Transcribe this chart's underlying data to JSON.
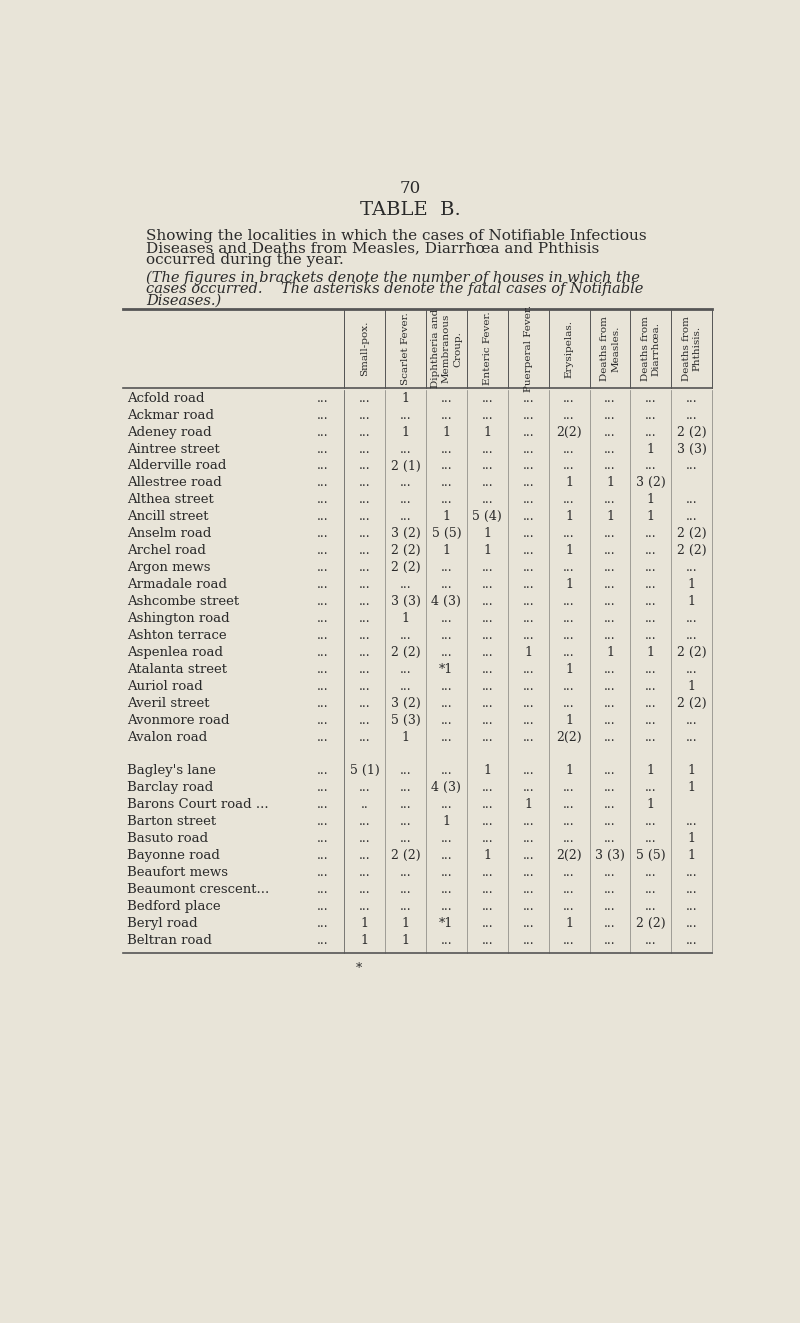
{
  "page_number": "70",
  "title": "TABLE  B.",
  "subtitle_line1": "Showing the localities in which the cases of Notifiable Infectious",
  "subtitle_line2": "Diseases and Deaths from Measles, Diarrħœa and Phthisis",
  "subtitle_line3": "occurred during the year.",
  "note_line1": "(The figures in brackets denote the number of houses in which the",
  "note_line2": "cases occurred.    The asterisks denote the fatal cases of Notifiable",
  "note_line3": "Diseases.)",
  "col_headers": [
    "Small-pox.",
    "Scarlet Fever.",
    "Diphtheria and\nMembranous\nCroup.",
    "Enteric Fever.",
    "Puerperal Fever.",
    "Erysipelas.",
    "Deaths from\nMeasles.",
    "Deaths from\nDiarrhœa.",
    "Deaths from\nPhthisis."
  ],
  "rows": [
    [
      "Acfold road",
      "...",
      "...",
      "1",
      "...",
      "...",
      "...",
      "...",
      "...",
      "...",
      "..."
    ],
    [
      "Ackmar road",
      "...",
      "...",
      "...",
      "...",
      "...",
      "...",
      "...",
      "...",
      "...",
      "..."
    ],
    [
      "Adeney road",
      "...",
      "...",
      "1",
      "1",
      "1",
      "...",
      "2(2)",
      "...",
      "...",
      "2 (2)"
    ],
    [
      "Aintree street",
      "...",
      "...",
      "...",
      "...",
      "...",
      "...",
      "...",
      "...",
      "1",
      "3 (3)"
    ],
    [
      "Alderville road",
      "...",
      "...",
      "2 (1)",
      "...",
      "...",
      "...",
      "...",
      "...",
      "...",
      "..."
    ],
    [
      "Allestree road",
      "...",
      "...",
      "...",
      "...",
      "...",
      "...",
      "1",
      "1",
      "3 (2)",
      ""
    ],
    [
      "Althea street",
      "...",
      "...",
      "...",
      "...",
      "...",
      "...",
      "...",
      "...",
      "1",
      "..."
    ],
    [
      "Ancill street",
      "...",
      "...",
      "...",
      "1",
      "5 (4)",
      "...",
      "1",
      "1",
      "1",
      "..."
    ],
    [
      "Anselm road",
      "...",
      "...",
      "3 (2)",
      "5 (5)",
      "1",
      "...",
      "...",
      "...",
      "...",
      "2 (2)"
    ],
    [
      "Archel road",
      "...",
      "...",
      "2 (2)",
      "1",
      "1",
      "...",
      "1",
      "...",
      "...",
      "2 (2)"
    ],
    [
      "Argon mews",
      "...",
      "...",
      "2 (2)",
      "...",
      "...",
      "...",
      "...",
      "...",
      "...",
      "..."
    ],
    [
      "Armadale road",
      "...",
      "...",
      "...",
      "...",
      "...",
      "...",
      "1",
      "...",
      "...",
      "1"
    ],
    [
      "Ashcombe street",
      "...",
      "...",
      "3 (3)",
      "4 (3)",
      "...",
      "...",
      "...",
      "...",
      "...",
      "1"
    ],
    [
      "Ashington road",
      "...",
      "...",
      "1",
      "...",
      "...",
      "...",
      "...",
      "...",
      "...",
      "..."
    ],
    [
      "Ashton terrace",
      "...",
      "...",
      "...",
      "...",
      "...",
      "...",
      "...",
      "...",
      "...",
      "..."
    ],
    [
      "Aspenlea road",
      "...",
      "...",
      "2 (2)",
      "...",
      "...",
      "1",
      "...",
      "1",
      "1",
      "2 (2)"
    ],
    [
      "Atalanta street",
      "...",
      "...",
      "...",
      "*1",
      "...",
      "...",
      "1",
      "...",
      "...",
      "..."
    ],
    [
      "Auriol road",
      "...",
      "...",
      "...",
      "...",
      "...",
      "...",
      "...",
      "...",
      "...",
      "1"
    ],
    [
      "Averil street",
      "...",
      "...",
      "3 (2)",
      "...",
      "...",
      "...",
      "...",
      "...",
      "...",
      "2 (2)"
    ],
    [
      "Avonmore road",
      "...",
      "...",
      "5 (3)",
      "...",
      "...",
      "...",
      "1",
      "...",
      "...",
      "..."
    ],
    [
      "Avalon road",
      "...",
      "...",
      "1",
      "...",
      "...",
      "...",
      "2(2)",
      "...",
      "...",
      "..."
    ],
    [
      "",
      "",
      "",
      "",
      "",
      "",
      "",
      "",
      "",
      "",
      ""
    ],
    [
      "Bagley's lane",
      "...",
      "5 (1)",
      "...",
      "...",
      "1",
      "...",
      "1",
      "...",
      "1",
      "1"
    ],
    [
      "Barclay road",
      "...",
      "...",
      "...",
      "4 (3)",
      "...",
      "...",
      "...",
      "...",
      "...",
      "1"
    ],
    [
      "Barons Court road ...",
      "...",
      "..",
      "...",
      "...",
      "...",
      "1",
      "...",
      "...",
      "1",
      ""
    ],
    [
      "Barton street",
      "...",
      "...",
      "...",
      "1",
      "...",
      "...",
      "...",
      "...",
      "...",
      "..."
    ],
    [
      "Basuto road",
      "...",
      "...",
      "...",
      "...",
      "...",
      "...",
      "...",
      "...",
      "...",
      "1"
    ],
    [
      "Bayonne road",
      "...",
      "...",
      "2 (2)",
      "...",
      "1",
      "...",
      "2(2)",
      "3 (3)",
      "5 (5)",
      "1"
    ],
    [
      "Beaufort mews",
      "...",
      "...",
      "...",
      "...",
      "...",
      "...",
      "...",
      "...",
      "...",
      "..."
    ],
    [
      "Beaumont crescent...",
      "...",
      "...",
      "...",
      "...",
      "...",
      "...",
      "...",
      "...",
      "...",
      "..."
    ],
    [
      "Bedford place",
      "...",
      "...",
      "...",
      "...",
      "...",
      "...",
      "...",
      "...",
      "...",
      "..."
    ],
    [
      "Beryl road",
      "...",
      "1",
      "1",
      "*1",
      "...",
      "...",
      "1",
      "...",
      "2 (2)",
      "..."
    ],
    [
      "Beltran road",
      "...",
      "1",
      "1",
      "...",
      "...",
      "...",
      "...",
      "...",
      "...",
      "..."
    ]
  ],
  "bg_color": "#e8e4d8",
  "text_color": "#2a2a2a",
  "line_color": "#555555"
}
